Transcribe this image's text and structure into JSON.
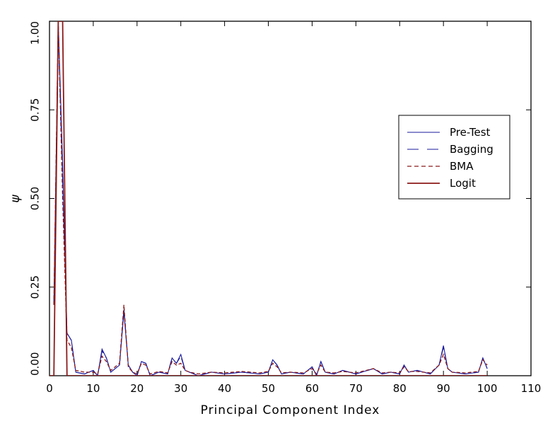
{
  "chart_data": {
    "type": "line",
    "xlabel": "Principal Component Index",
    "ylabel": "ψ",
    "xlim": [
      0,
      110
    ],
    "ylim": [
      0,
      1
    ],
    "x_ticks": [
      0,
      10,
      20,
      30,
      40,
      50,
      60,
      70,
      80,
      90,
      100,
      110
    ],
    "x_tick_labels": [
      "0",
      "10",
      "20",
      "30",
      "40",
      "50",
      "60",
      "70",
      "80",
      "90",
      "100",
      "110"
    ],
    "y_ticks": [
      0,
      0.25,
      0.5,
      0.75,
      1
    ],
    "y_tick_labels": [
      "0.00",
      "0.25",
      "0.50",
      "0.75",
      "1.00"
    ],
    "grid": false,
    "legend_position": "right",
    "series": [
      {
        "name": "Pre-Test",
        "color": "#1a1a9c",
        "style": "solid",
        "points": [
          [
            1,
            0.2
          ],
          [
            2,
            1.0
          ],
          [
            3,
            0.6
          ],
          [
            4,
            0.12
          ],
          [
            5,
            0.1
          ],
          [
            6,
            0.01
          ],
          [
            8,
            0.005
          ],
          [
            10,
            0.015
          ],
          [
            11,
            0.0
          ],
          [
            12,
            0.075
          ],
          [
            13,
            0.05
          ],
          [
            14,
            0.01
          ],
          [
            16,
            0.03
          ],
          [
            17,
            0.18
          ],
          [
            18,
            0.03
          ],
          [
            19,
            0.01
          ],
          [
            20,
            0.0
          ],
          [
            21,
            0.04
          ],
          [
            22,
            0.035
          ],
          [
            23,
            0.0
          ],
          [
            25,
            0.01
          ],
          [
            27,
            0.005
          ],
          [
            28,
            0.05
          ],
          [
            29,
            0.035
          ],
          [
            30,
            0.06
          ],
          [
            31,
            0.015
          ],
          [
            32,
            0.01
          ],
          [
            34,
            0.0
          ],
          [
            37,
            0.01
          ],
          [
            40,
            0.005
          ],
          [
            44,
            0.01
          ],
          [
            48,
            0.005
          ],
          [
            50,
            0.01
          ],
          [
            51,
            0.045
          ],
          [
            52,
            0.03
          ],
          [
            53,
            0.005
          ],
          [
            55,
            0.01
          ],
          [
            58,
            0.005
          ],
          [
            60,
            0.025
          ],
          [
            61,
            0.0
          ],
          [
            62,
            0.04
          ],
          [
            63,
            0.01
          ],
          [
            65,
            0.005
          ],
          [
            67,
            0.015
          ],
          [
            70,
            0.005
          ],
          [
            74,
            0.02
          ],
          [
            76,
            0.005
          ],
          [
            78,
            0.01
          ],
          [
            80,
            0.005
          ],
          [
            81,
            0.03
          ],
          [
            82,
            0.01
          ],
          [
            84,
            0.015
          ],
          [
            87,
            0.005
          ],
          [
            89,
            0.03
          ],
          [
            90,
            0.085
          ],
          [
            91,
            0.02
          ],
          [
            92,
            0.01
          ],
          [
            95,
            0.005
          ],
          [
            98,
            0.01
          ],
          [
            99,
            0.05
          ],
          [
            100,
            0.02
          ]
        ]
      },
      {
        "name": "Bagging",
        "color": "#1a1a9c",
        "style": "long-dash",
        "points": [
          [
            1,
            0.2
          ],
          [
            2,
            0.98
          ],
          [
            3,
            0.55
          ],
          [
            4,
            0.12
          ],
          [
            5,
            0.1
          ],
          [
            6,
            0.01
          ],
          [
            8,
            0.005
          ],
          [
            10,
            0.015
          ],
          [
            11,
            0.0
          ],
          [
            12,
            0.07
          ],
          [
            13,
            0.05
          ],
          [
            14,
            0.01
          ],
          [
            16,
            0.03
          ],
          [
            17,
            0.19
          ],
          [
            18,
            0.03
          ],
          [
            19,
            0.01
          ],
          [
            20,
            0.0
          ],
          [
            21,
            0.04
          ],
          [
            22,
            0.035
          ],
          [
            23,
            0.0
          ],
          [
            25,
            0.01
          ],
          [
            27,
            0.005
          ],
          [
            28,
            0.05
          ],
          [
            29,
            0.035
          ],
          [
            30,
            0.055
          ],
          [
            31,
            0.015
          ],
          [
            32,
            0.01
          ],
          [
            34,
            0.0
          ],
          [
            37,
            0.01
          ],
          [
            40,
            0.005
          ],
          [
            44,
            0.01
          ],
          [
            48,
            0.005
          ],
          [
            50,
            0.01
          ],
          [
            51,
            0.045
          ],
          [
            52,
            0.03
          ],
          [
            53,
            0.005
          ],
          [
            55,
            0.01
          ],
          [
            58,
            0.005
          ],
          [
            60,
            0.025
          ],
          [
            61,
            0.0
          ],
          [
            62,
            0.04
          ],
          [
            63,
            0.01
          ],
          [
            65,
            0.005
          ],
          [
            67,
            0.015
          ],
          [
            70,
            0.005
          ],
          [
            74,
            0.02
          ],
          [
            76,
            0.005
          ],
          [
            78,
            0.01
          ],
          [
            80,
            0.005
          ],
          [
            81,
            0.03
          ],
          [
            82,
            0.01
          ],
          [
            84,
            0.015
          ],
          [
            87,
            0.005
          ],
          [
            89,
            0.03
          ],
          [
            90,
            0.08
          ],
          [
            91,
            0.02
          ],
          [
            92,
            0.01
          ],
          [
            95,
            0.005
          ],
          [
            98,
            0.01
          ],
          [
            99,
            0.05
          ],
          [
            100,
            0.02
          ]
        ]
      },
      {
        "name": "BMA",
        "color": "#8b1a1a",
        "style": "short-dash",
        "points": [
          [
            1,
            0.2
          ],
          [
            2,
            1.0
          ],
          [
            3,
            0.5
          ],
          [
            4,
            0.1
          ],
          [
            5,
            0.08
          ],
          [
            6,
            0.015
          ],
          [
            8,
            0.01
          ],
          [
            10,
            0.01
          ],
          [
            11,
            0.005
          ],
          [
            12,
            0.055
          ],
          [
            13,
            0.04
          ],
          [
            14,
            0.015
          ],
          [
            16,
            0.035
          ],
          [
            17,
            0.2
          ],
          [
            18,
            0.025
          ],
          [
            19,
            0.01
          ],
          [
            20,
            0.005
          ],
          [
            21,
            0.035
          ],
          [
            22,
            0.03
          ],
          [
            23,
            0.005
          ],
          [
            25,
            0.012
          ],
          [
            27,
            0.008
          ],
          [
            28,
            0.04
          ],
          [
            29,
            0.03
          ],
          [
            30,
            0.035
          ],
          [
            31,
            0.015
          ],
          [
            32,
            0.01
          ],
          [
            34,
            0.005
          ],
          [
            37,
            0.01
          ],
          [
            40,
            0.008
          ],
          [
            44,
            0.012
          ],
          [
            48,
            0.008
          ],
          [
            50,
            0.012
          ],
          [
            51,
            0.035
          ],
          [
            52,
            0.025
          ],
          [
            53,
            0.008
          ],
          [
            55,
            0.01
          ],
          [
            58,
            0.008
          ],
          [
            60,
            0.02
          ],
          [
            61,
            0.005
          ],
          [
            62,
            0.03
          ],
          [
            63,
            0.01
          ],
          [
            65,
            0.008
          ],
          [
            67,
            0.012
          ],
          [
            70,
            0.008
          ],
          [
            74,
            0.02
          ],
          [
            76,
            0.008
          ],
          [
            78,
            0.01
          ],
          [
            80,
            0.008
          ],
          [
            81,
            0.025
          ],
          [
            82,
            0.012
          ],
          [
            84,
            0.012
          ],
          [
            87,
            0.008
          ],
          [
            89,
            0.03
          ],
          [
            90,
            0.06
          ],
          [
            91,
            0.02
          ],
          [
            92,
            0.01
          ],
          [
            95,
            0.008
          ],
          [
            98,
            0.012
          ],
          [
            99,
            0.045
          ],
          [
            100,
            0.03
          ]
        ]
      },
      {
        "name": "Logit",
        "color": "#8b1a1a",
        "style": "solid",
        "points": [
          [
            0,
            0.0
          ],
          [
            1,
            0.0
          ],
          [
            2,
            1.0
          ],
          [
            3,
            1.0
          ],
          [
            4,
            0.0
          ],
          [
            100,
            0.0
          ]
        ]
      }
    ]
  }
}
